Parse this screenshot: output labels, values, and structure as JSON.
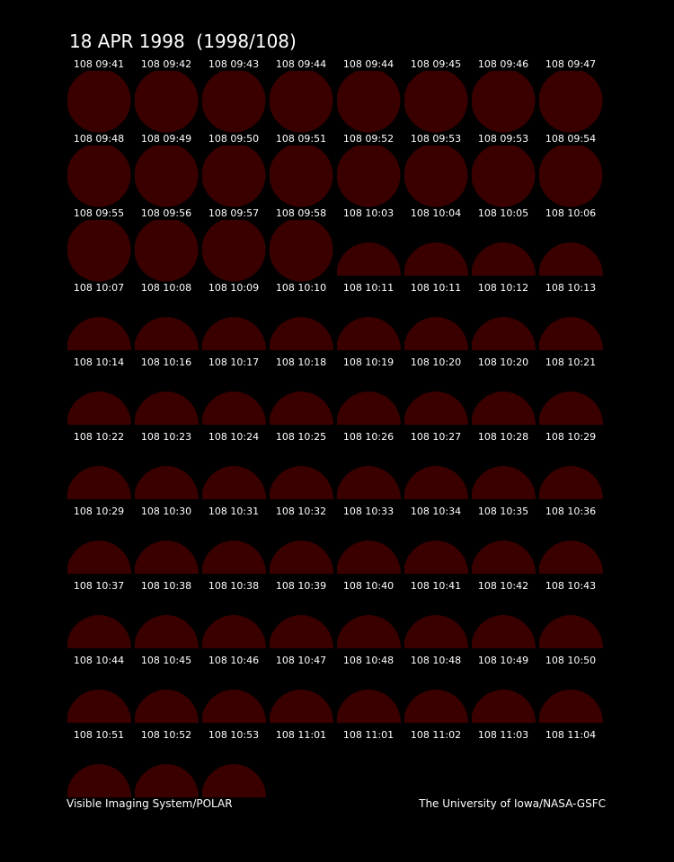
{
  "header": {
    "title": "18 APR 1998  (1998/108)"
  },
  "frames": [
    "108 09:41",
    "108 09:42",
    "108 09:43",
    "108 09:44",
    "108 09:44",
    "108 09:45",
    "108 09:46",
    "108 09:47",
    "108 09:48",
    "108 09:49",
    "108 09:50",
    "108 09:51",
    "108 09:52",
    "108 09:53",
    "108 09:53",
    "108 09:54",
    "108 09:55",
    "108 09:56",
    "108 09:57",
    "108 09:58",
    "108 10:03",
    "108 10:04",
    "108 10:05",
    "108 10:06",
    "108 10:07",
    "108 10:08",
    "108 10:09",
    "108 10:10",
    "108 10:11",
    "108 10:11",
    "108 10:12",
    "108 10:13",
    "108 10:14",
    "108 10:16",
    "108 10:17",
    "108 10:18",
    "108 10:19",
    "108 10:20",
    "108 10:20",
    "108 10:21",
    "108 10:22",
    "108 10:23",
    "108 10:24",
    "108 10:25",
    "108 10:26",
    "108 10:27",
    "108 10:28",
    "108 10:29",
    "108 10:29",
    "108 10:30",
    "108 10:31",
    "108 10:32",
    "108 10:33",
    "108 10:34",
    "108 10:35",
    "108 10:36",
    "108 10:37",
    "108 10:38",
    "108 10:38",
    "108 10:39",
    "108 10:40",
    "108 10:41",
    "108 10:42",
    "108 10:43",
    "108 10:44",
    "108 10:45",
    "108 10:46",
    "108 10:47",
    "108 10:48",
    "108 10:48",
    "108 10:49",
    "108 10:50",
    "108 10:51",
    "108 10:52",
    "108 10:53",
    "108 11:01",
    "108 11:01",
    "108 11:02",
    "108 11:03",
    "108 11:04"
  ],
  "footer": {
    "left": "Visible Imaging System/POLAR",
    "right": "The University of Iowa/NASA-GSFC"
  }
}
